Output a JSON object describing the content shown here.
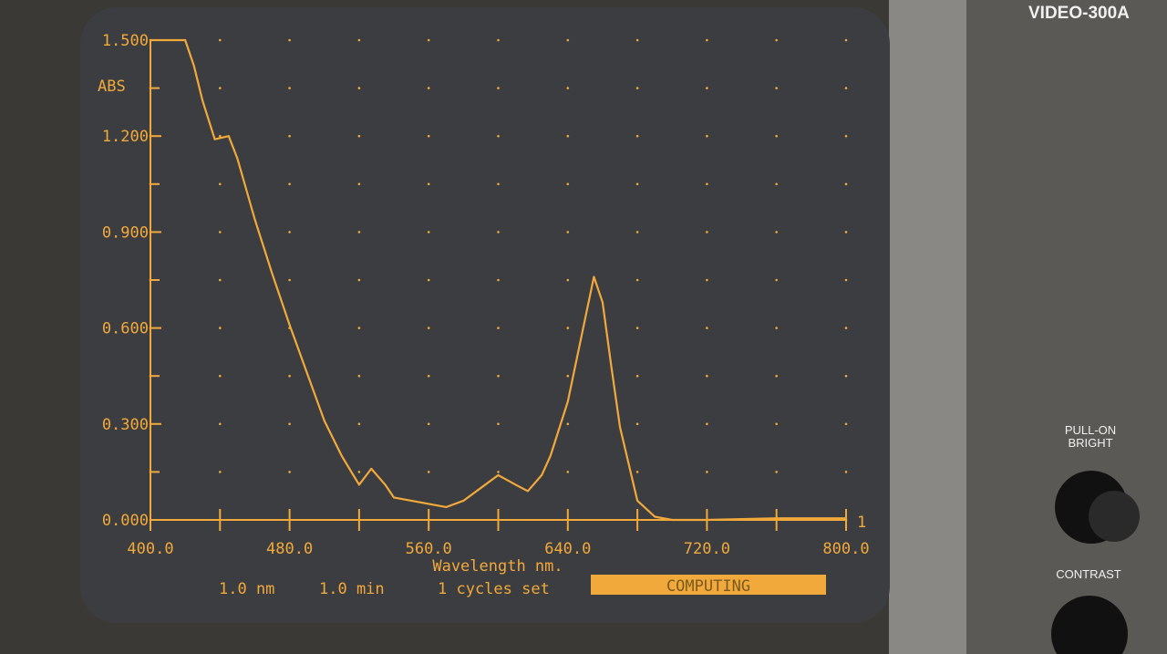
{
  "chart_data": {
    "type": "line",
    "y_label": "ABS",
    "x_label": "Wavelength nm.",
    "axis_end_label": "1",
    "color": "#f2a93b",
    "grid": true,
    "xlim": [
      400,
      800
    ],
    "xticks": [
      {
        "value": 400,
        "label": "400.0"
      },
      {
        "value": 480,
        "label": "480.0"
      },
      {
        "value": 560,
        "label": "560.0"
      },
      {
        "value": 640,
        "label": "640.0"
      },
      {
        "value": 720,
        "label": "720.0"
      },
      {
        "value": 800,
        "label": "800.0"
      }
    ],
    "x_minor_ticks": [
      440,
      520,
      600,
      680,
      760
    ],
    "ylim": [
      0,
      1.5
    ],
    "yticks": [
      {
        "value": 0,
        "label": "0.000"
      },
      {
        "value": 0.3,
        "label": "0.300"
      },
      {
        "value": 0.6,
        "label": "0.600"
      },
      {
        "value": 0.9,
        "label": "0.900"
      },
      {
        "value": 1.2,
        "label": "1.200"
      },
      {
        "value": 1.5,
        "label": "1.500"
      }
    ],
    "y_minor_ticks": [
      0.15,
      0.45,
      0.75,
      1.05,
      1.35
    ],
    "x": [
      400,
      410,
      420,
      425,
      430,
      437,
      445,
      450,
      460,
      470,
      480,
      490,
      500,
      510,
      520,
      527,
      535,
      540,
      550,
      560,
      570,
      580,
      590,
      600,
      610,
      617,
      625,
      630,
      640,
      650,
      655,
      660,
      665,
      670,
      680,
      690,
      700,
      720,
      760,
      800
    ],
    "series": [
      {
        "values": [
          1.5,
          1.5,
          1.5,
          1.42,
          1.31,
          1.19,
          1.2,
          1.13,
          0.94,
          0.77,
          0.61,
          0.46,
          0.31,
          0.2,
          0.11,
          0.16,
          0.11,
          0.07,
          0.06,
          0.05,
          0.04,
          0.06,
          0.1,
          0.14,
          0.11,
          0.09,
          0.14,
          0.2,
          0.37,
          0.63,
          0.76,
          0.68,
          0.48,
          0.29,
          0.06,
          0.01,
          0,
          0,
          0.005,
          0.005
        ]
      }
    ]
  },
  "status": {
    "resolution": "1.0 nm",
    "time": "1.0 min",
    "cycles": "1 cycles set",
    "state": "COMPUTING"
  },
  "panel": {
    "model": "VIDEO-300A",
    "bright": "PULL-ON BRIGHT",
    "contrast": "CONTRAST"
  }
}
